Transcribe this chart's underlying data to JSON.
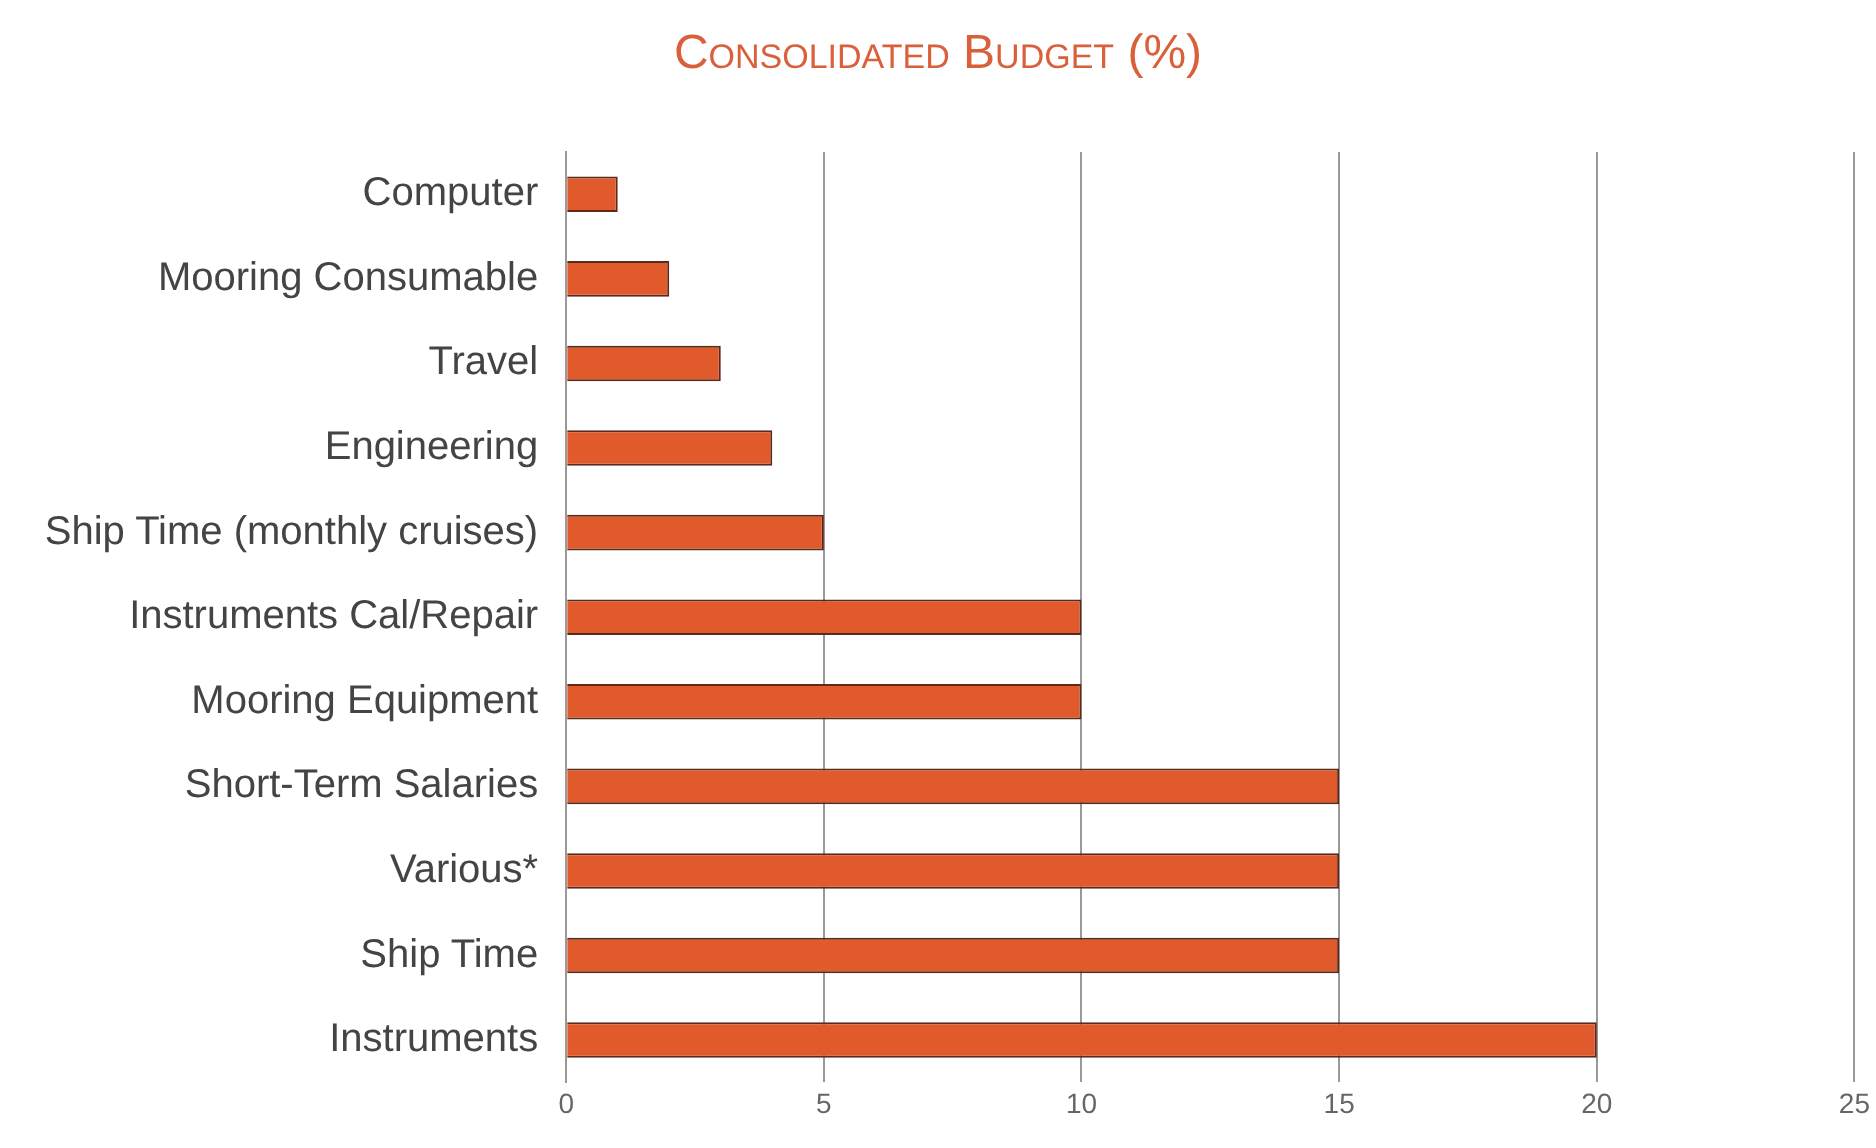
{
  "chart_data": {
    "type": "bar",
    "title": "Consolidated Budget (%)",
    "orientation": "horizontal",
    "categories": [
      "Computer",
      "Mooring Consumable",
      "Travel",
      "Engineering",
      "Ship Time (monthly cruises)",
      "Instruments Cal/Repair",
      "Mooring Equipment",
      "Short-Term Salaries",
      "Various*",
      "Ship Time",
      "Instruments"
    ],
    "values": [
      1,
      2,
      3,
      4,
      5,
      10,
      10,
      15,
      15,
      15,
      20
    ],
    "color": "#e05a2b",
    "xlim": [
      0,
      25
    ],
    "xticks": [
      0,
      5,
      10,
      15,
      20,
      25
    ],
    "grid": "x"
  }
}
